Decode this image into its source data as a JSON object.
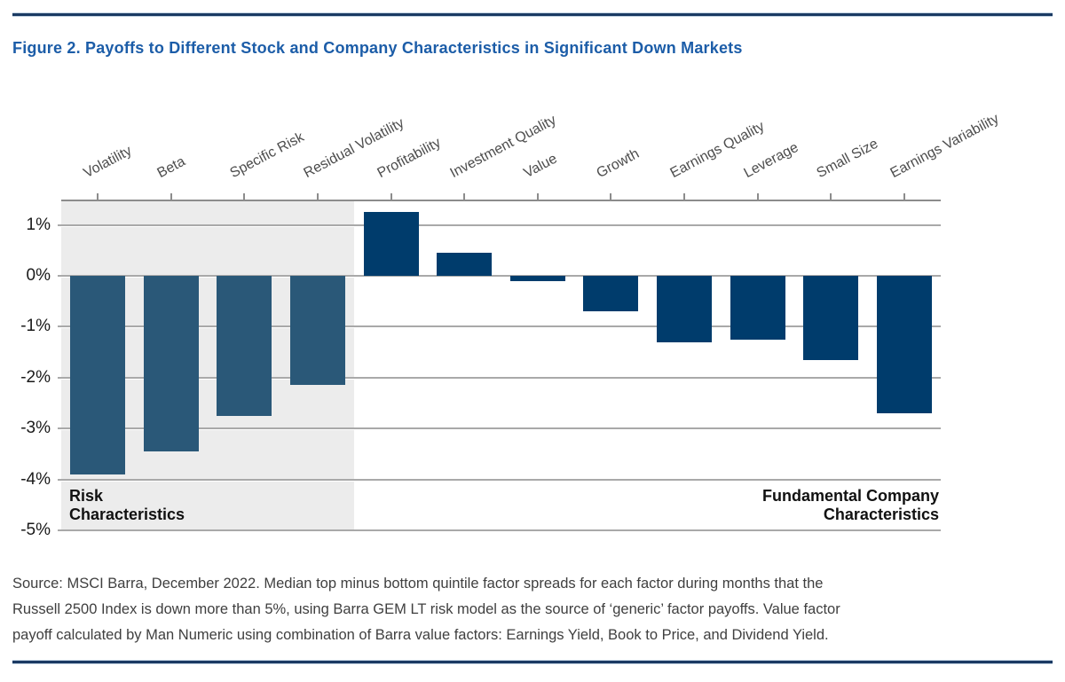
{
  "figure": {
    "title": "Figure 2. Payoffs to Different Stock and Company Characteristics in Significant Down Markets"
  },
  "chart_data": {
    "type": "bar",
    "title": "Figure 2. Payoffs to Different Stock and Company Characteristics in Significant Down Markets",
    "unit": "%",
    "categories": [
      "Volatility",
      "Beta",
      "Specific Risk",
      "Residual Volatility",
      "Profitability",
      "Investment Quality",
      "Value",
      "Growth",
      "Earnings Quality",
      "Leverage",
      "Small Size",
      "Earnings Variability"
    ],
    "values": [
      -3.9,
      -3.45,
      -2.75,
      -2.15,
      1.25,
      0.45,
      -0.1,
      -0.7,
      -1.3,
      -1.25,
      -1.65,
      -2.7
    ],
    "ylim": [
      -5,
      1.5
    ],
    "yticks": [
      1,
      0,
      -1,
      -2,
      -3,
      -4,
      -5
    ],
    "ytick_labels": [
      "1%",
      "0%",
      "-1%",
      "-2%",
      "-3%",
      "-4%",
      "-5%"
    ],
    "grid": true,
    "legend": "none",
    "groups": [
      {
        "name": "Risk Characteristics",
        "label_lines": [
          "Risk",
          "Characteristics"
        ],
        "from": 0,
        "to": 3,
        "bar_color": "#2A5878",
        "shaded": true,
        "label_align": "left"
      },
      {
        "name": "Fundamental Company Characteristics",
        "label_lines": [
          "Fundamental Company",
          "Characteristics"
        ],
        "from": 4,
        "to": 11,
        "bar_color": "#003C6C",
        "shaded": false,
        "label_align": "right"
      }
    ]
  },
  "source_note": {
    "lines": [
      "Source: MSCI Barra, December 2022. Median top minus bottom quintile factor spreads for each factor during months that the",
      "Russell 2500 Index is down more than 5%, using Barra GEM LT risk model as the source of ‘generic’ factor payoffs. Value factor",
      "payoff calculated by Man Numeric using combination of Barra value factors: Earnings Yield, Book to Price, and Dividend Yield."
    ]
  },
  "colors": {
    "title": "#1C5DA8",
    "rule": "#1B3A63",
    "shade": "#ECECEC",
    "gridline": "#A9A9A9",
    "axis": "#8C8C8C",
    "category_label": "#4D4D4D",
    "tick_label": "#1A1A1A",
    "group_label": "#111111",
    "source_text": "#3F3F3F"
  }
}
